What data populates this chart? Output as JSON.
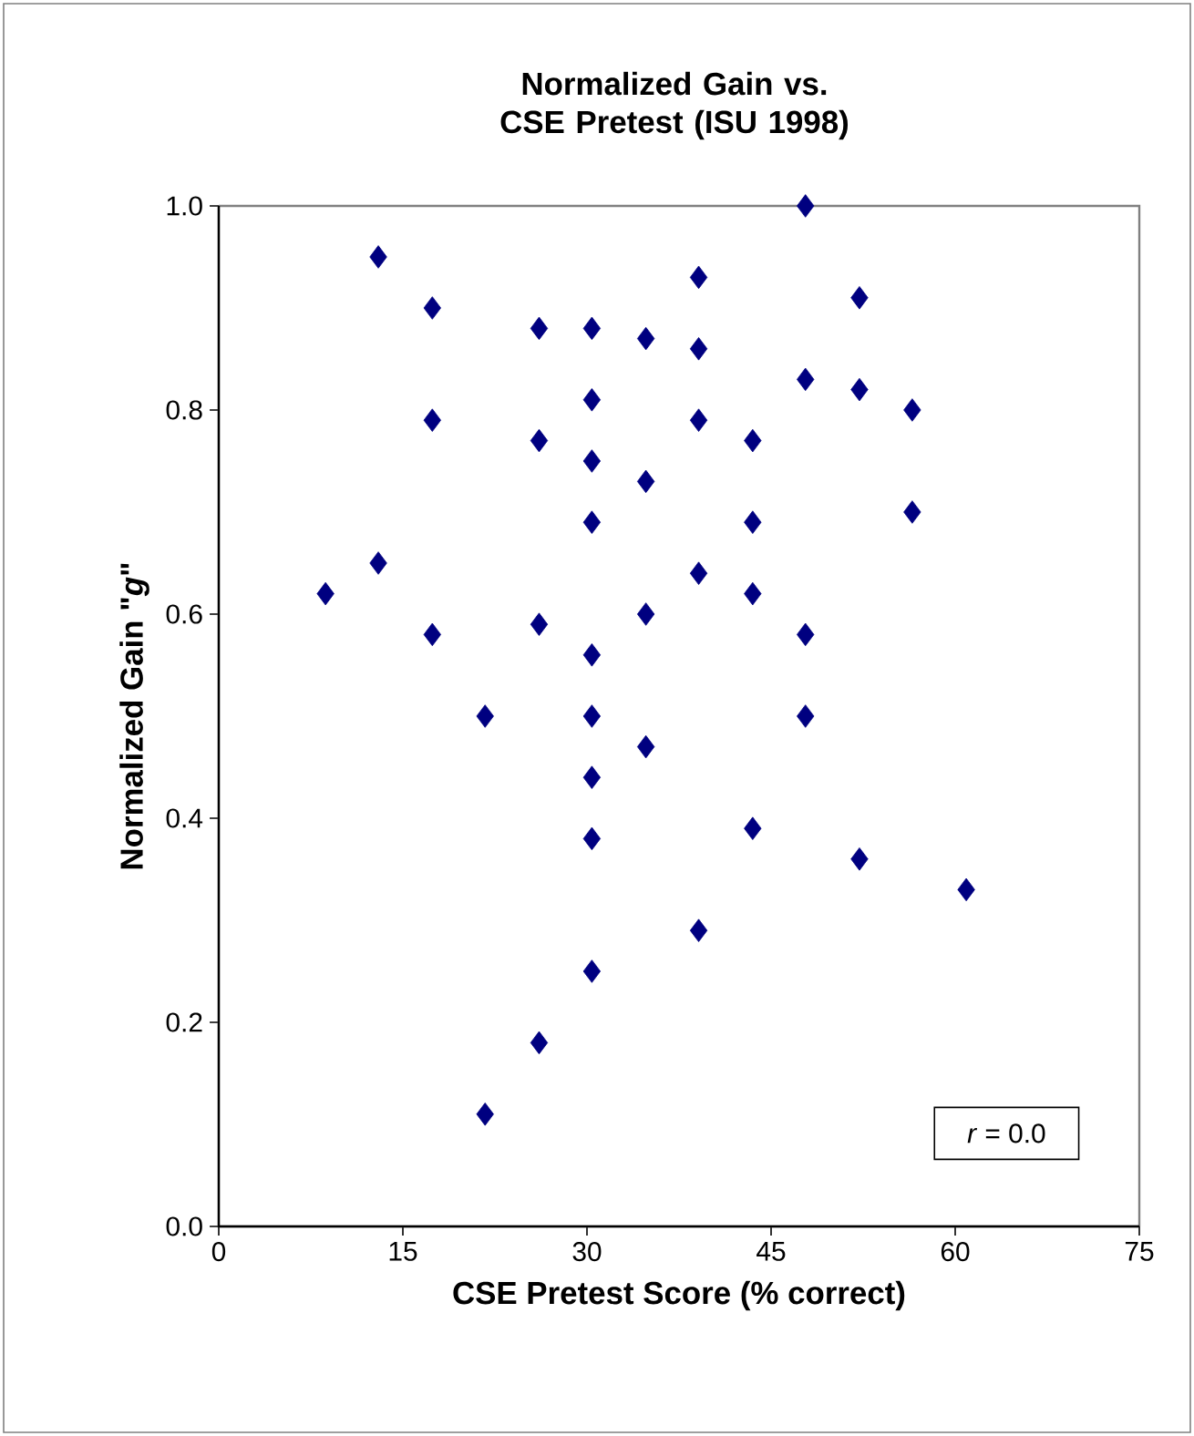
{
  "chart_data": {
    "type": "scatter",
    "title": "Normalized Gain vs. CSE Pretest (ISU 1998)",
    "xlabel": "CSE Pretest Score (% correct)",
    "ylabel": "Normalized Gain \"*g*\"",
    "annotations": [
      "*r* = 0.0"
    ],
    "x": [
      8.7,
      13.0,
      13.0,
      17.4,
      17.4,
      17.4,
      21.7,
      21.7,
      26.1,
      26.1,
      26.1,
      26.1,
      30.4,
      30.4,
      30.4,
      30.4,
      30.4,
      30.4,
      30.4,
      30.4,
      30.4,
      34.8,
      34.8,
      34.8,
      34.8,
      39.1,
      39.1,
      39.1,
      39.1,
      39.1,
      43.5,
      43.5,
      43.5,
      43.5,
      47.8,
      47.8,
      47.8,
      47.8,
      52.2,
      52.2,
      52.2,
      56.5,
      56.5,
      60.9
    ],
    "values": [
      0.62,
      0.95,
      0.65,
      0.9,
      0.79,
      0.58,
      0.5,
      0.11,
      0.88,
      0.77,
      0.59,
      0.18,
      0.88,
      0.81,
      0.75,
      0.69,
      0.56,
      0.5,
      0.44,
      0.38,
      0.25,
      0.87,
      0.73,
      0.6,
      0.47,
      0.93,
      0.86,
      0.79,
      0.64,
      0.29,
      0.77,
      0.69,
      0.62,
      0.39,
      1.0,
      0.83,
      0.58,
      0.5,
      0.91,
      0.82,
      0.36,
      0.8,
      0.7,
      0.33
    ],
    "color": "#000080",
    "marker": "diamond",
    "xlim": [
      0,
      75
    ],
    "xticks": [
      0,
      15,
      30,
      45,
      60,
      75
    ],
    "ylim": [
      0,
      1
    ],
    "yticks": [
      {
        "value": 0,
        "label": "0.0"
      },
      {
        "value": 0.2,
        "label": "0.2"
      },
      {
        "value": 0.4,
        "label": "0.4"
      },
      {
        "value": 0.6,
        "label": "0.6"
      },
      {
        "value": 0.8,
        "label": "0.8"
      },
      {
        "value": 1,
        "label": "1.0"
      }
    ]
  }
}
